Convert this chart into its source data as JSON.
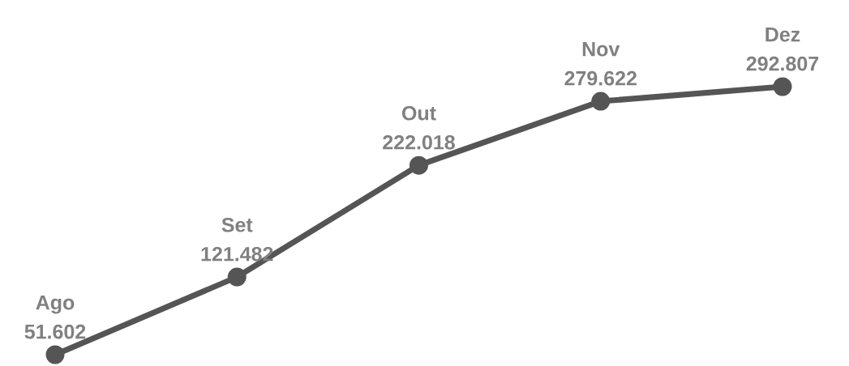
{
  "chart_data": {
    "type": "line",
    "categories": [
      "Ago",
      "Set",
      "Out",
      "Nov",
      "Dez"
    ],
    "values": [
      51.602,
      121.482,
      222.018,
      279.622,
      292.807
    ],
    "color": "#555555",
    "marker": "circle",
    "data_labels": true
  }
}
